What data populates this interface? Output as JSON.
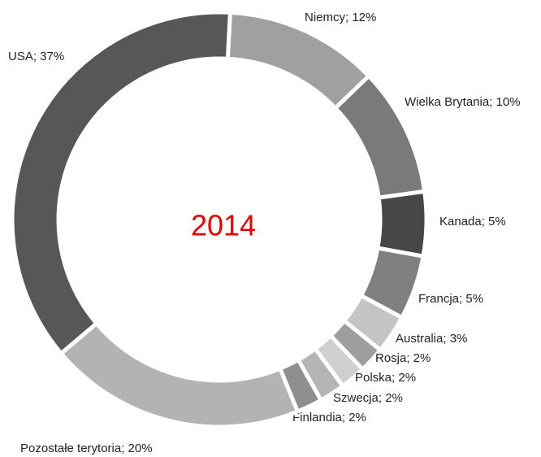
{
  "chart_data": {
    "type": "donut",
    "title": "2014",
    "categories": [
      "Niemcy; 12%",
      "Wielka Brytania; 10%",
      "Kanada; 5%",
      "Francja; 5%",
      "Australia; 3%",
      "Rosja; 2%",
      "Polska; 2%",
      "Szwecja; 2%",
      "Finlandia; 2%",
      "Pozostałe terytoria; 20%",
      "USA; 37%"
    ],
    "values": [
      12,
      10,
      5,
      5,
      3,
      2,
      2,
      2,
      2,
      20,
      37
    ],
    "colors": [
      "#a0a0a0",
      "#7a7a7a",
      "#474747",
      "#808080",
      "#c4c4c4",
      "#9e9e9e",
      "#cfcfcf",
      "#b5b5b5",
      "#8f8f8f",
      "#b3b3b3",
      "#575757"
    ]
  }
}
